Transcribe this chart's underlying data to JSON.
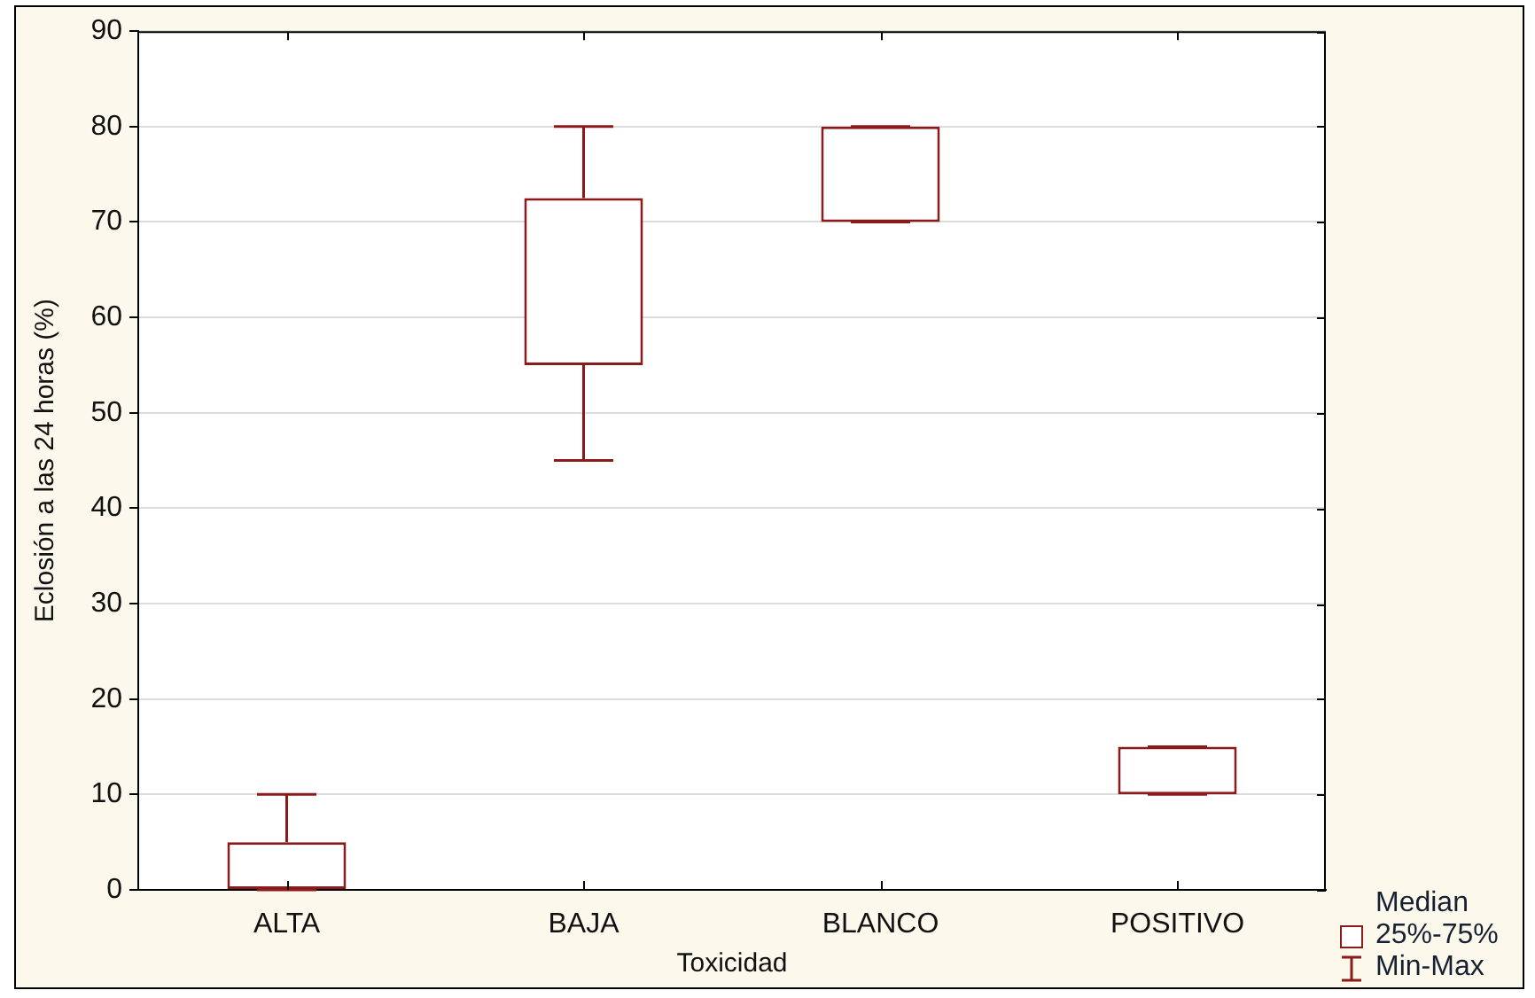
{
  "chart_data": {
    "type": "box",
    "xlabel": "Toxicidad",
    "ylabel": "Eclosión a las 24 horas (%)",
    "categories": [
      "ALTA",
      "BAJA",
      "BLANCO",
      "POSITIVO"
    ],
    "color": "#8b1a1a",
    "boxes": [
      {
        "low": 0,
        "q1": 0,
        "median": null,
        "q3": 5,
        "high": 10
      },
      {
        "low": 45,
        "q1": 55,
        "median": null,
        "q3": 72.5,
        "high": 80
      },
      {
        "low": 70,
        "q1": 70,
        "median": null,
        "q3": 80,
        "high": 80
      },
      {
        "low": 10,
        "q1": 10,
        "median": null,
        "q3": 15,
        "high": 15
      }
    ],
    "ylim": [
      0,
      90
    ],
    "yticks": [
      0,
      10,
      20,
      30,
      40,
      50,
      60,
      70,
      80,
      90
    ],
    "grid": "y",
    "annotations": [
      "Median",
      "25%-75%",
      "Min-Max"
    ]
  }
}
